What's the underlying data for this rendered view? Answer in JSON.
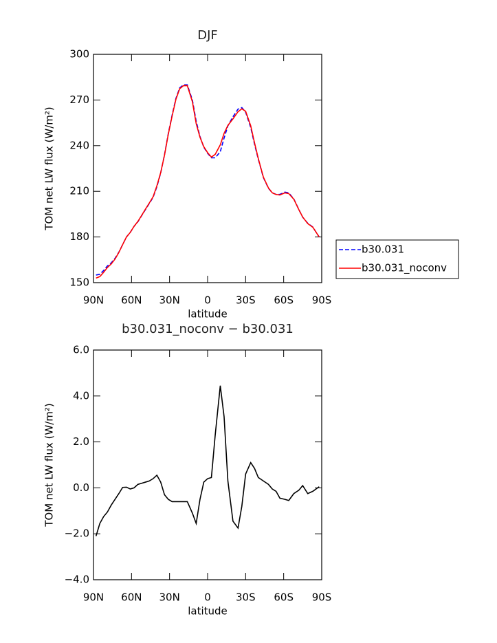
{
  "chart_data": [
    {
      "type": "line",
      "title": "DJF",
      "xlabel": "latitude",
      "ylabel": "TOM net LW flux (W/m²)",
      "x": [
        88,
        85,
        82,
        79,
        76,
        73,
        70,
        67,
        64,
        61,
        58,
        55,
        52,
        49,
        46,
        43,
        40,
        37,
        34,
        31,
        28,
        25,
        22,
        19,
        16,
        12,
        9,
        6,
        3,
        0,
        -3,
        -6,
        -10,
        -13,
        -16,
        -20,
        -24,
        -27,
        -30,
        -34,
        -37,
        -40,
        -44,
        -48,
        -51,
        -54,
        -57,
        -61,
        -64,
        -68,
        -72,
        -75,
        -79,
        -83,
        -88
      ],
      "series": [
        {
          "name": "b30.031",
          "color": "#0000ff",
          "dashed": true,
          "values": [
            155,
            155.5,
            158,
            161,
            163,
            166,
            170,
            175,
            180,
            183,
            187,
            190,
            194,
            198,
            202,
            206,
            213,
            222,
            234,
            248,
            260,
            271,
            278,
            280,
            280,
            270,
            256,
            246,
            239,
            235,
            232,
            232,
            236,
            245,
            253,
            259,
            264,
            265,
            262,
            252,
            241,
            231,
            219,
            212,
            209,
            208,
            208,
            209.5,
            209,
            205,
            198,
            193,
            189,
            186.5,
            180
          ]
        },
        {
          "name": "b30.031_noconv",
          "color": "#ff0000",
          "dashed": false,
          "values": [
            153,
            154,
            156.8,
            160,
            162.3,
            165.5,
            169.8,
            175,
            180,
            183,
            187,
            190.2,
            194.2,
            198.3,
            202.3,
            206.4,
            213.6,
            222.3,
            233.7,
            247.5,
            259.4,
            270.4,
            277.4,
            279.4,
            279.4,
            268.9,
            254.5,
            245.5,
            239.3,
            235.4,
            232.5,
            234.3,
            240.5,
            248.1,
            253.3,
            257.6,
            262.3,
            264.2,
            262.6,
            253.1,
            241.9,
            231.5,
            219.3,
            212.2,
            209,
            207.9,
            207.6,
            209,
            208.5,
            204.8,
            197.9,
            193.1,
            188.8,
            186.4,
            180
          ]
        }
      ],
      "xlim": [
        90,
        -90
      ],
      "xticks": [
        {
          "value": 90,
          "label": "90N"
        },
        {
          "value": 60,
          "label": "60N"
        },
        {
          "value": 30,
          "label": "30N"
        },
        0,
        {
          "value": -30,
          "label": "30S"
        },
        {
          "value": -60,
          "label": "60S"
        },
        {
          "value": -90,
          "label": "90S"
        }
      ],
      "ylim": [
        150,
        300
      ],
      "yticks": [
        150,
        180,
        210,
        240,
        270,
        300
      ],
      "legend": "right"
    },
    {
      "type": "line",
      "title": "b30.031_noconv − b30.031",
      "xlabel": "latitude",
      "ylabel": "TOM net LW flux (W/m²)",
      "x": [
        88,
        85,
        82,
        79,
        76,
        73,
        70,
        67,
        64,
        61,
        58,
        55,
        52,
        49,
        46,
        43,
        40,
        37,
        34,
        31,
        28,
        25,
        22,
        19,
        16,
        12,
        9,
        6,
        3,
        0,
        -3,
        -6,
        -10,
        -13,
        -16,
        -20,
        -24,
        -27,
        -30,
        -34,
        -37,
        -40,
        -44,
        -48,
        -51,
        -54,
        -57,
        -61,
        -64,
        -68,
        -72,
        -75,
        -79,
        -83,
        -88
      ],
      "series": [
        {
          "color": "#000000",
          "dashed": false,
          "values": [
            -2.1,
            -1.55,
            -1.25,
            -1.05,
            -0.75,
            -0.5,
            -0.25,
            0.02,
            0.03,
            -0.05,
            0,
            0.15,
            0.2,
            0.25,
            0.3,
            0.4,
            0.55,
            0.25,
            -0.3,
            -0.5,
            -0.6,
            -0.6,
            -0.6,
            -0.6,
            -0.6,
            -1.1,
            -1.55,
            -0.5,
            0.25,
            0.4,
            0.45,
            2.3,
            4.45,
            3.1,
            0.3,
            -1.45,
            -1.75,
            -0.8,
            0.6,
            1.1,
            0.85,
            0.45,
            0.3,
            0.15,
            -0.05,
            -0.15,
            -0.45,
            -0.5,
            -0.55,
            -0.25,
            -0.1,
            0.1,
            -0.25,
            -0.15,
            0.05
          ]
        }
      ],
      "xlim": [
        90,
        -90
      ],
      "xticks": [
        {
          "value": 90,
          "label": "90N"
        },
        {
          "value": 60,
          "label": "60N"
        },
        {
          "value": 30,
          "label": "30N"
        },
        0,
        {
          "value": -30,
          "label": "30S"
        },
        {
          "value": -60,
          "label": "60S"
        },
        {
          "value": -90,
          "label": "90S"
        }
      ],
      "ylim": [
        -4,
        6
      ],
      "yticks": [
        {
          "value": -4,
          "label": "−4.0"
        },
        {
          "value": -2,
          "label": "−2.0"
        },
        {
          "value": 0,
          "label": "0.0"
        },
        {
          "value": 2,
          "label": "2.0"
        },
        {
          "value": 4,
          "label": "4.0"
        },
        {
          "value": 6,
          "label": "6.0"
        }
      ]
    }
  ]
}
